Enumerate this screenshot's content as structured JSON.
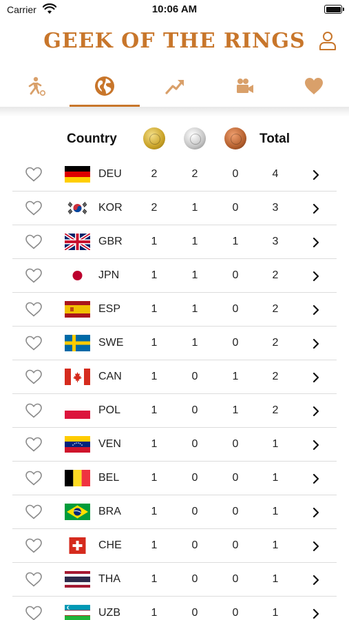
{
  "status_bar": {
    "carrier": "Carrier",
    "time": "10:06 AM"
  },
  "header": {
    "title": "GEEK OF THE RINGS"
  },
  "tabs": [
    {
      "icon": "athlete-ball-icon",
      "active": false
    },
    {
      "icon": "globe-icon",
      "active": true
    },
    {
      "icon": "trend-up-icon",
      "active": false
    },
    {
      "icon": "video-camera-icon",
      "active": false
    },
    {
      "icon": "heart-icon",
      "active": false
    }
  ],
  "table": {
    "columns": {
      "country": "Country",
      "total": "Total"
    },
    "medal_icons": [
      "gold-medal-icon",
      "silver-medal-icon",
      "bronze-medal-icon"
    ],
    "rows": [
      {
        "code": "DEU",
        "gold": "2",
        "silver": "2",
        "bronze": "0",
        "total": "4"
      },
      {
        "code": "KOR",
        "gold": "2",
        "silver": "1",
        "bronze": "0",
        "total": "3"
      },
      {
        "code": "GBR",
        "gold": "1",
        "silver": "1",
        "bronze": "1",
        "total": "3"
      },
      {
        "code": "JPN",
        "gold": "1",
        "silver": "1",
        "bronze": "0",
        "total": "2"
      },
      {
        "code": "ESP",
        "gold": "1",
        "silver": "1",
        "bronze": "0",
        "total": "2"
      },
      {
        "code": "SWE",
        "gold": "1",
        "silver": "1",
        "bronze": "0",
        "total": "2"
      },
      {
        "code": "CAN",
        "gold": "1",
        "silver": "0",
        "bronze": "1",
        "total": "2"
      },
      {
        "code": "POL",
        "gold": "1",
        "silver": "0",
        "bronze": "1",
        "total": "2"
      },
      {
        "code": "VEN",
        "gold": "1",
        "silver": "0",
        "bronze": "0",
        "total": "1"
      },
      {
        "code": "BEL",
        "gold": "1",
        "silver": "0",
        "bronze": "0",
        "total": "1"
      },
      {
        "code": "BRA",
        "gold": "1",
        "silver": "0",
        "bronze": "0",
        "total": "1"
      },
      {
        "code": "CHE",
        "gold": "1",
        "silver": "0",
        "bronze": "0",
        "total": "1"
      },
      {
        "code": "THA",
        "gold": "1",
        "silver": "0",
        "bronze": "0",
        "total": "1"
      },
      {
        "code": "UZB",
        "gold": "1",
        "silver": "0",
        "bronze": "0",
        "total": "1"
      }
    ]
  },
  "colors": {
    "accent": "#c8762b",
    "tab_icon": "#d9a06a",
    "divider": "#dcdcdc"
  }
}
